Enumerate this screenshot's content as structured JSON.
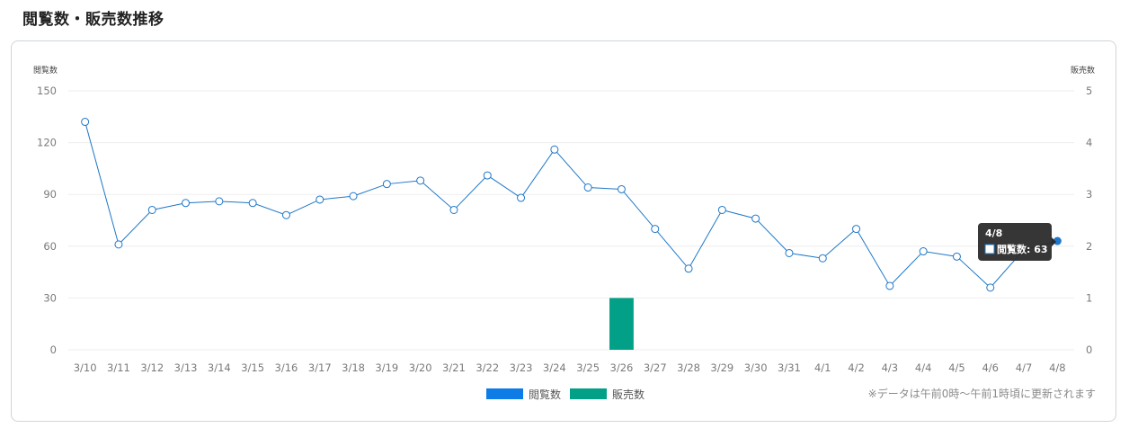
{
  "section": {
    "title": "閲覧数・販売数推移"
  },
  "chart_data": {
    "type": "line",
    "categories": [
      "3/10",
      "3/11",
      "3/12",
      "3/13",
      "3/14",
      "3/15",
      "3/16",
      "3/17",
      "3/18",
      "3/19",
      "3/20",
      "3/21",
      "3/22",
      "3/23",
      "3/24",
      "3/25",
      "3/26",
      "3/27",
      "3/28",
      "3/29",
      "3/30",
      "3/31",
      "4/1",
      "4/2",
      "4/3",
      "4/4",
      "4/5",
      "4/6",
      "4/7",
      "4/8"
    ],
    "series": [
      {
        "name": "閲覧数",
        "type": "line",
        "axis": "left",
        "color": "#1f78c8",
        "legend_color": "#0d7ce6",
        "values": [
          132,
          61,
          81,
          85,
          86,
          85,
          78,
          87,
          89,
          96,
          98,
          81,
          101,
          88,
          116,
          94,
          93,
          70,
          47,
          81,
          76,
          56,
          53,
          70,
          37,
          57,
          54,
          36,
          58,
          63
        ]
      },
      {
        "name": "販売数",
        "type": "bar",
        "axis": "right",
        "color": "#03a088",
        "legend_color": "#03a088",
        "values": [
          0,
          0,
          0,
          0,
          0,
          0,
          0,
          0,
          0,
          0,
          0,
          0,
          0,
          0,
          0,
          0,
          1,
          0,
          0,
          0,
          0,
          0,
          0,
          0,
          0,
          0,
          0,
          0,
          0,
          0
        ]
      }
    ],
    "y_left": {
      "label": "閲覧数",
      "min": 0,
      "max": 150,
      "ticks": [
        0,
        30,
        60,
        90,
        120,
        150
      ]
    },
    "y_right": {
      "label": "販売数",
      "min": 0,
      "max": 5,
      "ticks": [
        0,
        1,
        2,
        3,
        4,
        5
      ]
    },
    "grid": true,
    "legend_position": "bottom-center",
    "tooltip": {
      "title": "4/8",
      "text": "閲覧数: 63",
      "category_index": 29
    }
  },
  "footnote": "※データは午前0時〜午前1時頃に更新されます",
  "colors": {
    "grid": "#eeeeee",
    "tooltip_bg": "#2b2b2b"
  }
}
